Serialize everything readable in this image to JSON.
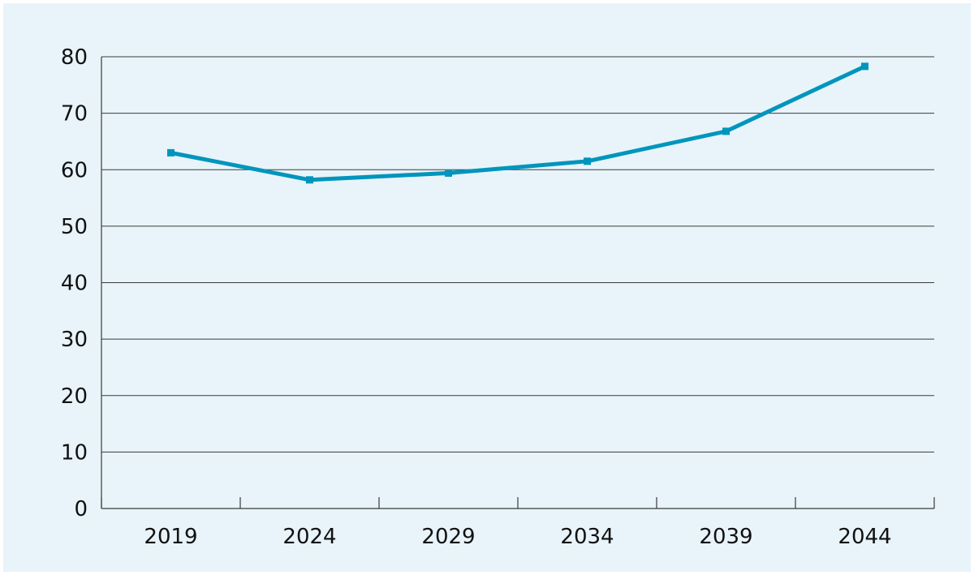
{
  "chart_data": {
    "type": "line",
    "title": "",
    "xlabel": "",
    "ylabel": "",
    "categories": [
      "2019",
      "2024",
      "2029",
      "2034",
      "2039",
      "2044"
    ],
    "series": [
      {
        "values": [
          63.0,
          58.2,
          59.4,
          61.5,
          66.8,
          78.3
        ]
      }
    ],
    "ylim": [
      0,
      80
    ],
    "yticks": [
      "0",
      "10",
      "20",
      "30",
      "40",
      "50",
      "60",
      "70",
      "80"
    ],
    "grid": "horizontal",
    "legend": "none",
    "colors": {
      "background": "#e8f4fa",
      "line": "#0095bd",
      "grid": "#3a3a3a",
      "text": "#111111"
    }
  }
}
